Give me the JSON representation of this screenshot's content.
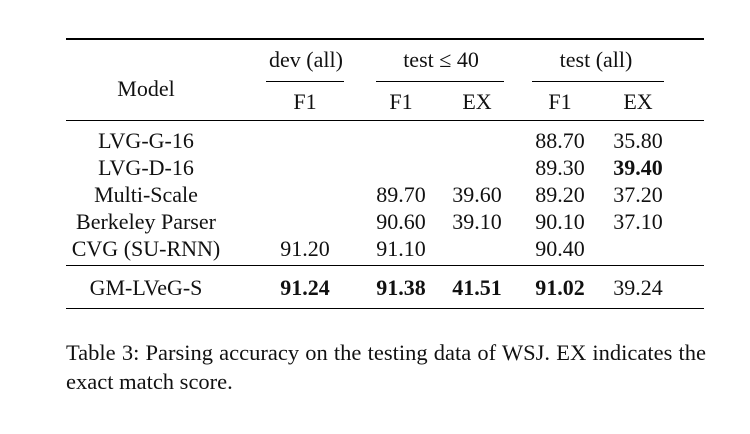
{
  "table": {
    "header": {
      "model_label": "Model",
      "groups": [
        "dev (all)",
        "test ≤ 40",
        "test (all)"
      ],
      "subcolumns": [
        "F1",
        "F1",
        "EX",
        "F1",
        "EX"
      ]
    },
    "rows": [
      {
        "model": "LVG-G-16",
        "cells": [
          "",
          "",
          "",
          "88.70",
          "35.80"
        ],
        "bold": [
          false,
          false,
          false,
          false,
          false
        ]
      },
      {
        "model": "LVG-D-16",
        "cells": [
          "",
          "",
          "",
          "89.30",
          "39.40"
        ],
        "bold": [
          false,
          false,
          false,
          false,
          true
        ]
      },
      {
        "model": "Multi-Scale",
        "cells": [
          "",
          "89.70",
          "39.60",
          "89.20",
          "37.20"
        ],
        "bold": [
          false,
          false,
          false,
          false,
          false
        ]
      },
      {
        "model": "Berkeley Parser",
        "cells": [
          "",
          "90.60",
          "39.10",
          "90.10",
          "37.10"
        ],
        "bold": [
          false,
          false,
          false,
          false,
          false
        ]
      },
      {
        "model": "CVG (SU-RNN)",
        "cells": [
          "91.20",
          "91.10",
          "",
          "90.40",
          ""
        ],
        "bold": [
          false,
          false,
          false,
          false,
          false
        ]
      }
    ],
    "final_row": {
      "model": "GM-LVeG-S",
      "cells": [
        "91.24",
        "91.38",
        "41.51",
        "91.02",
        "39.24"
      ],
      "bold": [
        true,
        true,
        true,
        true,
        false
      ]
    }
  },
  "caption": "Table 3: Parsing accuracy on the testing data of WSJ. EX indicates the exact match score."
}
